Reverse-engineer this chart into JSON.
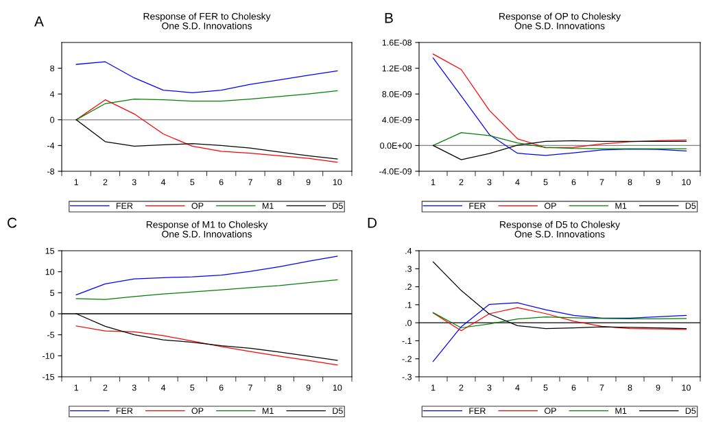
{
  "chart_data": [
    {
      "type": "line",
      "title": "Response of FER to Cholesky\nOne S.D. Innovations",
      "annotations": [
        "A"
      ],
      "categories": [
        "1",
        "2",
        "3",
        "4",
        "5",
        "6",
        "7",
        "8",
        "9",
        "10"
      ],
      "ylim": [
        -8,
        12
      ],
      "yticks": [
        -8,
        -4,
        0,
        4,
        8
      ],
      "legend": "bottom",
      "grid": false,
      "ref_lines": [
        {
          "axis": "y",
          "value": 0,
          "color": "#808080"
        }
      ],
      "series": [
        {
          "name": "FER",
          "color": "#0000ff",
          "values": [
            8.6,
            9.0,
            6.5,
            4.6,
            4.2,
            4.6,
            5.5,
            6.2,
            6.9,
            7.6
          ]
        },
        {
          "name": "OP",
          "color": "#ff0000",
          "values": [
            0,
            3.1,
            0.9,
            -2.2,
            -4.1,
            -4.9,
            -5.2,
            -5.6,
            -6.0,
            -6.6
          ]
        },
        {
          "name": "M1",
          "color": "#008000",
          "values": [
            0,
            2.5,
            3.2,
            3.1,
            2.9,
            2.9,
            3.2,
            3.6,
            4.0,
            4.5
          ]
        },
        {
          "name": "D5",
          "color": "#000000",
          "values": [
            0,
            -3.4,
            -4.1,
            -3.9,
            -3.7,
            -4.0,
            -4.4,
            -5.0,
            -5.6,
            -6.1
          ]
        }
      ]
    },
    {
      "type": "line",
      "title": "Response of OP to Cholesky\nOne S.D. Innovations",
      "annotations": [
        "B"
      ],
      "categories": [
        "1",
        "2",
        "3",
        "4",
        "5",
        "6",
        "7",
        "8",
        "9",
        "10"
      ],
      "ylim": [
        -4e-09,
        1.6e-08
      ],
      "yticks": [
        {
          "value": -4e-09,
          "label": "-4.0E-09"
        },
        {
          "value": 0,
          "label": "0.0E+00"
        },
        {
          "value": 4e-09,
          "label": "4.0E-09"
        },
        {
          "value": 8e-09,
          "label": "8.0E-09"
        },
        {
          "value": 1.2e-08,
          "label": "1.2E-08"
        },
        {
          "value": 1.6e-08,
          "label": "1.6E-08"
        }
      ],
      "legend": "bottom",
      "grid": false,
      "ref_lines": [
        {
          "axis": "y",
          "value": 0,
          "color": "#808080"
        }
      ],
      "series": [
        {
          "name": "FER",
          "color": "#0000ff",
          "values": [
            1.36e-08,
            7.7e-09,
            1.7e-09,
            -1.2e-09,
            -1.55e-09,
            -1.15e-09,
            -7e-10,
            -5.5e-10,
            -6e-10,
            -8.5e-10
          ]
        },
        {
          "name": "OP",
          "color": "#ff0000",
          "values": [
            1.42e-08,
            1.18e-08,
            5.45e-09,
            1.05e-09,
            -3.5e-10,
            -3e-10,
            2.5e-10,
            6e-10,
            7.5e-10,
            8.5e-10
          ]
        },
        {
          "name": "M1",
          "color": "#008000",
          "values": [
            0,
            2e-09,
            1.55e-09,
            4e-10,
            -3e-10,
            -4.5e-10,
            -5e-10,
            -5e-10,
            -5e-10,
            -5e-10
          ]
        },
        {
          "name": "D5",
          "color": "#000000",
          "values": [
            0,
            -2.2e-09,
            -1.25e-09,
            5e-11,
            6.5e-10,
            7.5e-10,
            6.5e-10,
            6.5e-10,
            6.5e-10,
            6.5e-10
          ]
        }
      ]
    },
    {
      "type": "line",
      "title": "Response of M1 to Cholesky\nOne S.D. Innovations",
      "annotations": [
        "C"
      ],
      "categories": [
        "1",
        "2",
        "3",
        "4",
        "5",
        "6",
        "7",
        "8",
        "9",
        "10"
      ],
      "ylim": [
        -15,
        15
      ],
      "yticks": [
        -15,
        -10,
        -5,
        0,
        5,
        10,
        15
      ],
      "legend": "bottom",
      "grid": false,
      "ref_lines": [
        {
          "axis": "y",
          "value": 0,
          "color": "#000000"
        }
      ],
      "series": [
        {
          "name": "FER",
          "color": "#0000ff",
          "values": [
            4.5,
            7.1,
            8.3,
            8.6,
            8.8,
            9.2,
            10.1,
            11.2,
            12.5,
            13.7
          ]
        },
        {
          "name": "OP",
          "color": "#ff0000",
          "values": [
            -2.9,
            -4.1,
            -4.3,
            -5.2,
            -6.5,
            -7.8,
            -9.0,
            -10.1,
            -11.1,
            -12.2
          ]
        },
        {
          "name": "M1",
          "color": "#008000",
          "values": [
            3.6,
            3.4,
            4.1,
            4.7,
            5.2,
            5.7,
            6.2,
            6.7,
            7.4,
            8.1
          ]
        },
        {
          "name": "D5",
          "color": "#000000",
          "values": [
            0,
            -3.0,
            -5.0,
            -6.2,
            -6.8,
            -7.6,
            -8.2,
            -9.1,
            -10.1,
            -11.1
          ]
        }
      ]
    },
    {
      "type": "line",
      "title": "Response of D5 to Cholesky\nOne S.D. Innovations",
      "annotations": [
        "D"
      ],
      "categories": [
        "1",
        "2",
        "3",
        "4",
        "5",
        "6",
        "7",
        "8",
        "9",
        "10"
      ],
      "ylim": [
        -0.3,
        0.4
      ],
      "yticks": [
        {
          "value": -0.3,
          "label": "-.3"
        },
        {
          "value": -0.2,
          "label": "-.2"
        },
        {
          "value": -0.1,
          "label": "-.1"
        },
        {
          "value": 0,
          "label": ".0"
        },
        {
          "value": 0.1,
          "label": ".1"
        },
        {
          "value": 0.2,
          "label": ".2"
        },
        {
          "value": 0.3,
          "label": ".3"
        },
        {
          "value": 0.4,
          "label": ".4"
        }
      ],
      "legend": "bottom",
      "grid": false,
      "ref_lines": [
        {
          "axis": "y",
          "value": 0,
          "color": "#000000"
        }
      ],
      "series": [
        {
          "name": "FER",
          "color": "#0000ff",
          "values": [
            -0.215,
            -0.022,
            0.102,
            0.111,
            0.072,
            0.041,
            0.026,
            0.026,
            0.033,
            0.041
          ]
        },
        {
          "name": "OP",
          "color": "#ff0000",
          "values": [
            0.055,
            -0.044,
            0.05,
            0.084,
            0.051,
            0.009,
            -0.02,
            -0.032,
            -0.034,
            -0.037
          ]
        },
        {
          "name": "M1",
          "color": "#008000",
          "values": [
            0.056,
            -0.028,
            -0.007,
            0.021,
            0.032,
            0.028,
            0.024,
            0.022,
            0.022,
            0.024
          ]
        },
        {
          "name": "D5",
          "color": "#000000",
          "values": [
            0.338,
            0.179,
            0.048,
            -0.016,
            -0.032,
            -0.028,
            -0.023,
            -0.026,
            -0.028,
            -0.032
          ]
        }
      ]
    }
  ]
}
